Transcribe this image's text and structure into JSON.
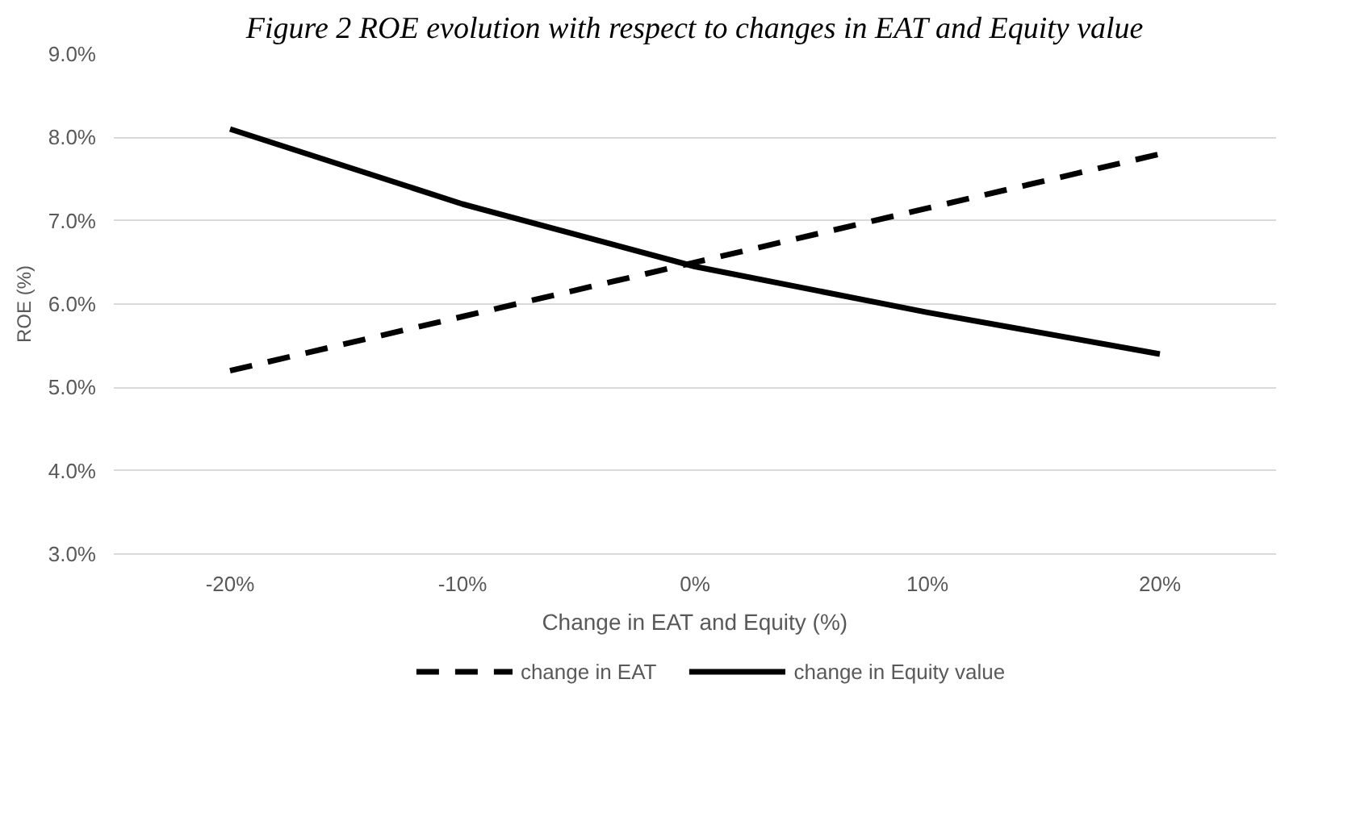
{
  "chart_data": {
    "type": "line",
    "title": "Figure 2 ROE evolution with respect to changes in EAT and Equity value",
    "xlabel": "Change in EAT and Equity (%)",
    "ylabel": "ROE (%)",
    "categories": [
      "-20%",
      "-10%",
      "0%",
      "10%",
      "20%"
    ],
    "series": [
      {
        "name": "change in EAT",
        "color": "#000000",
        "line_style": "dashed",
        "values": [
          5.2,
          5.85,
          6.5,
          7.15,
          7.8
        ]
      },
      {
        "name": "change in Equity value",
        "color": "#000000",
        "line_style": "solid",
        "values": [
          8.1,
          7.2,
          6.45,
          5.9,
          5.4
        ]
      }
    ],
    "ylim": [
      3,
      9
    ],
    "yticks": [
      {
        "value": 3,
        "label": "3.0%"
      },
      {
        "value": 4,
        "label": "4.0%"
      },
      {
        "value": 5,
        "label": "5.0%"
      },
      {
        "value": 6,
        "label": "6.0%"
      },
      {
        "value": 7,
        "label": "7.0%"
      },
      {
        "value": 8,
        "label": "8.0%"
      },
      {
        "value": 9,
        "label": "9.0%"
      }
    ],
    "grid": "y",
    "legend": "bottom",
    "marker": "none"
  }
}
